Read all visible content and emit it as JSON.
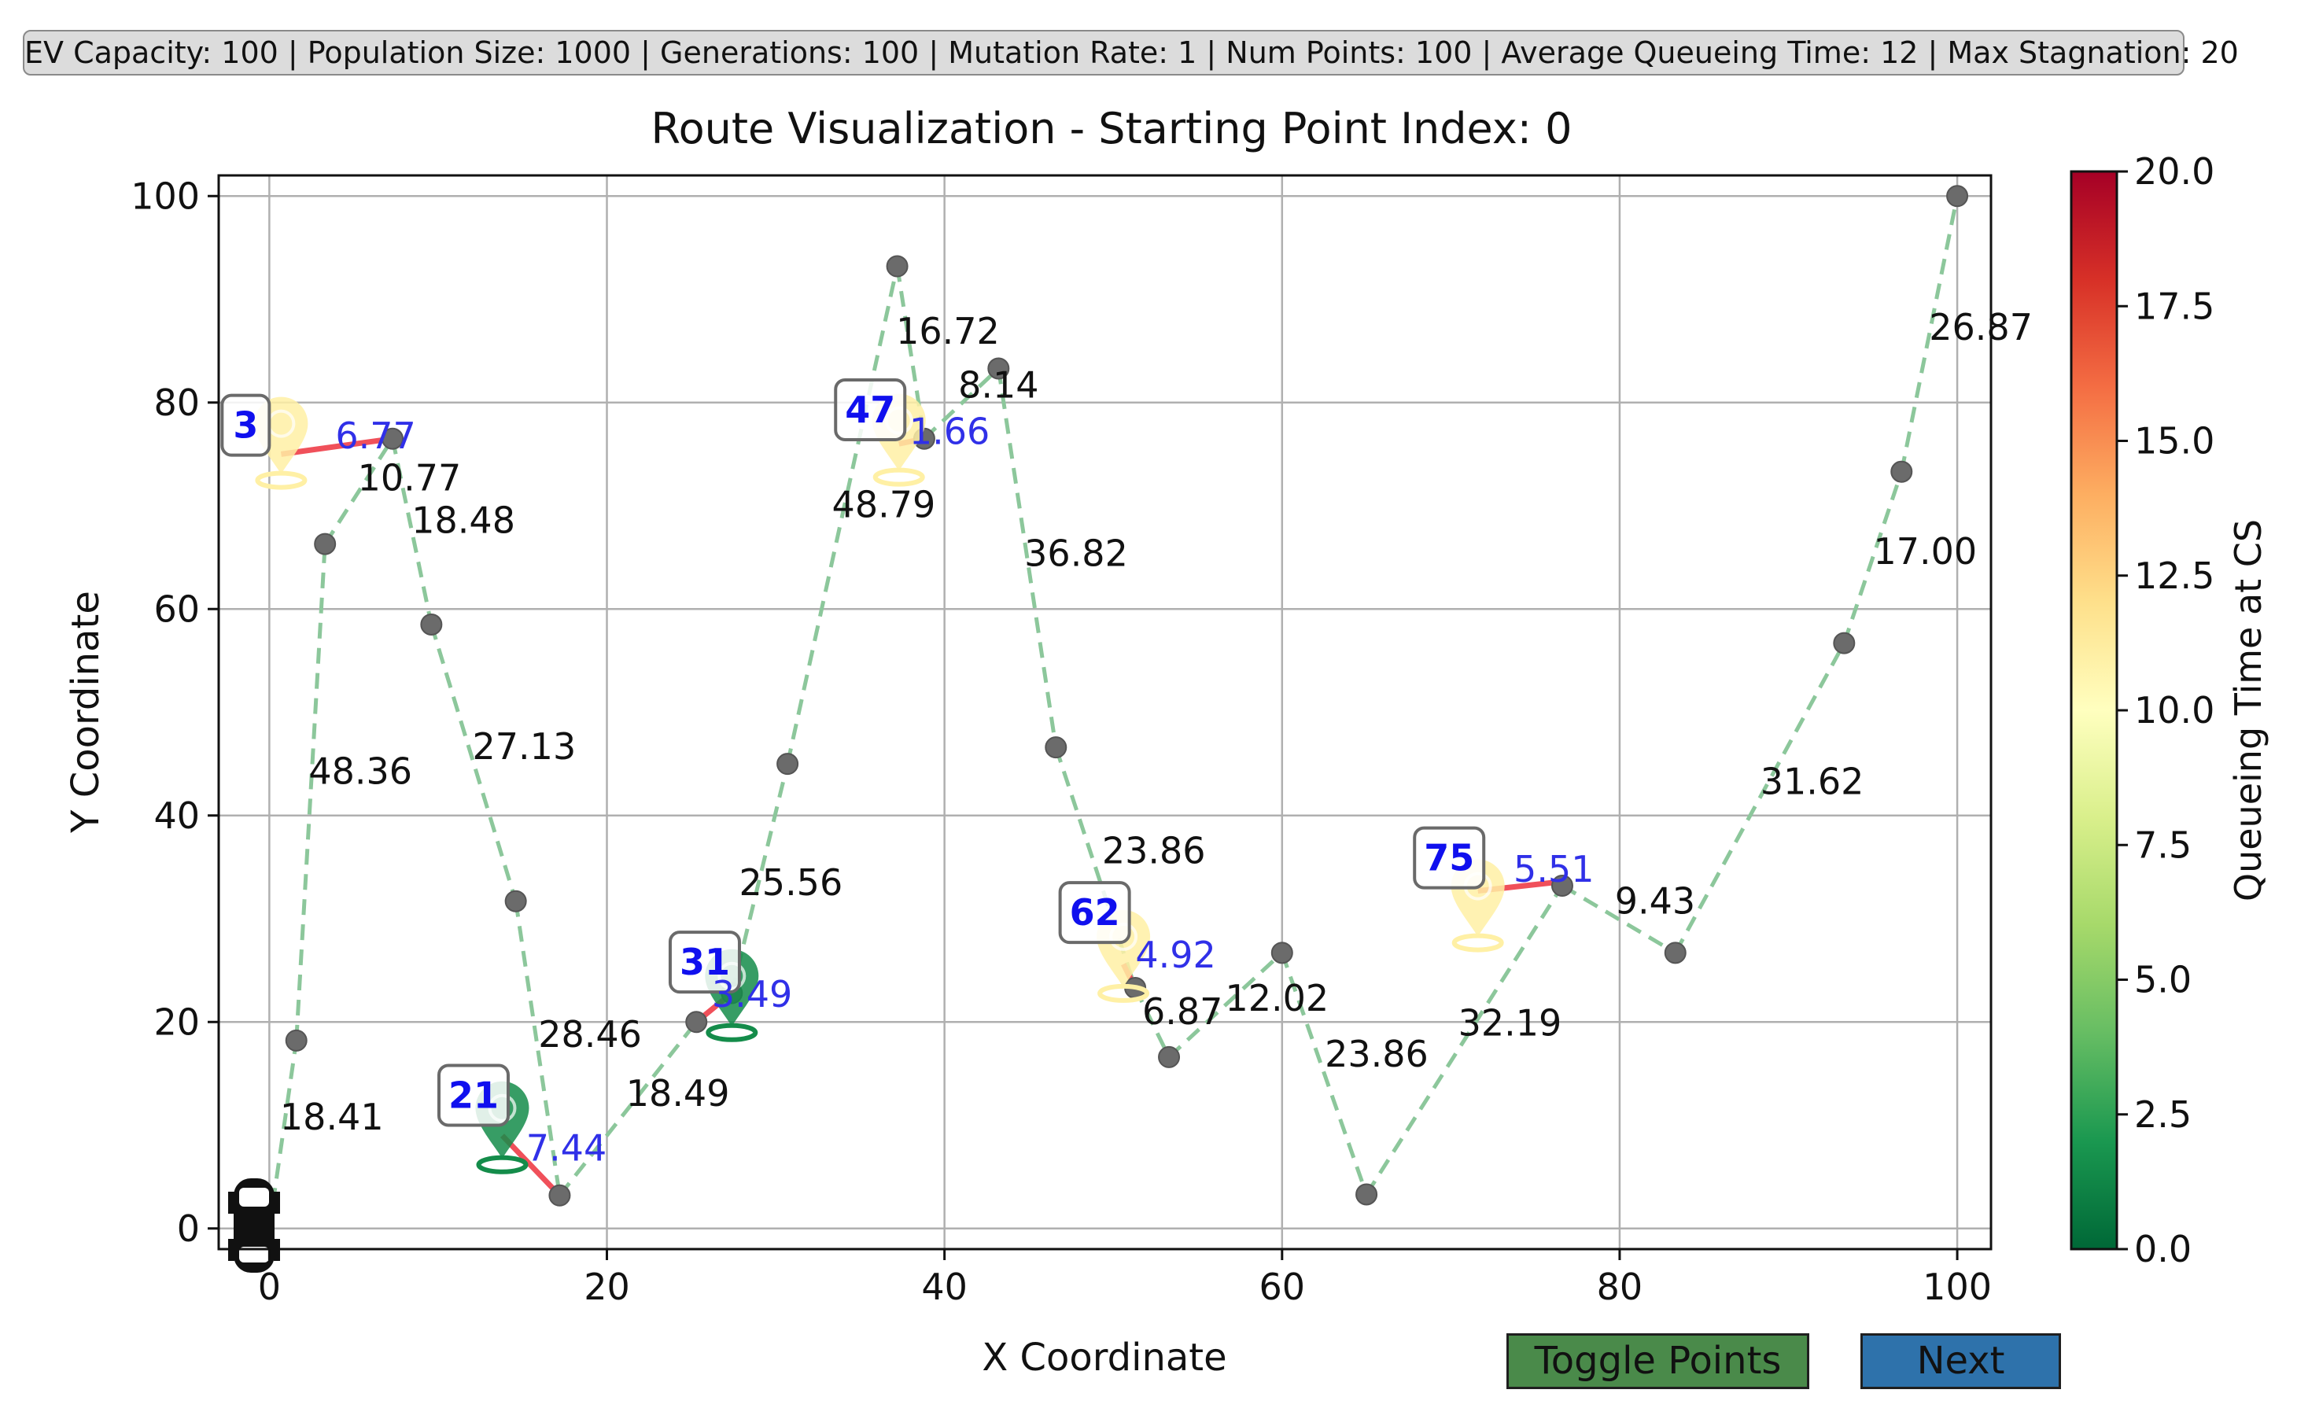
{
  "params": "EV Capacity: 100 | Population Size: 1000 | Generations: 100 | Mutation Rate: 1 | Num Points: 100 | Average Queueing Time: 12 | Max Stagnation: 20",
  "buttons": {
    "toggle_label": "Toggle Points",
    "toggle_color": "#4a8a4a",
    "next_label": "Next",
    "next_color": "#2e72ab"
  },
  "chart_data": {
    "type": "scatter",
    "title": "Route Visualization - Starting Point Index: 0",
    "xlabel": "X Coordinate",
    "ylabel": "Y Coordinate",
    "xlim": [
      -3,
      102
    ],
    "ylim": [
      -2,
      102
    ],
    "xticks": [
      0,
      20,
      40,
      60,
      80,
      100
    ],
    "yticks": [
      0,
      20,
      40,
      60,
      80,
      100
    ],
    "grid": true,
    "route_color": "#8cc79b",
    "charge_line_color": "#f0505a",
    "point_color": "#6b6b6b",
    "points": [
      [
        0,
        0
      ],
      [
        1.6,
        18.2
      ],
      [
        3.3,
        66.3
      ],
      [
        7.3,
        76.5
      ],
      [
        9.6,
        58.5
      ],
      [
        14.6,
        31.7
      ],
      [
        17.2,
        3.2
      ],
      [
        25.3,
        20.0
      ],
      [
        27.4,
        22.8
      ],
      [
        30.7,
        45.0
      ],
      [
        37.2,
        93.2
      ],
      [
        38.8,
        76.5
      ],
      [
        43.2,
        83.3
      ],
      [
        46.6,
        46.6
      ],
      [
        51.3,
        23.3
      ],
      [
        53.3,
        16.6
      ],
      [
        60.0,
        26.7
      ],
      [
        65.0,
        3.3
      ],
      [
        76.6,
        33.2
      ],
      [
        83.3,
        26.7
      ],
      [
        93.3,
        56.7
      ],
      [
        96.7,
        73.3
      ],
      [
        100,
        100
      ]
    ],
    "segment_labels": [
      {
        "text": "18.41",
        "x": 3.7,
        "y": 10.8
      },
      {
        "text": "48.36",
        "x": 5.4,
        "y": 44.3
      },
      {
        "text": "10.77",
        "x": 8.3,
        "y": 72.7
      },
      {
        "text": "18.48",
        "x": 11.5,
        "y": 68.6
      },
      {
        "text": "27.13",
        "x": 15.1,
        "y": 46.7
      },
      {
        "text": "28.46",
        "x": 19.0,
        "y": 18.8
      },
      {
        "text": "18.49",
        "x": 24.2,
        "y": 13.1
      },
      {
        "text": "25.56",
        "x": 30.9,
        "y": 33.5
      },
      {
        "text": "48.79",
        "x": 36.4,
        "y": 70.1
      },
      {
        "text": "16.72",
        "x": 40.2,
        "y": 86.9
      },
      {
        "text": "8.14",
        "x": 43.2,
        "y": 81.7
      },
      {
        "text": "36.82",
        "x": 47.8,
        "y": 65.4
      },
      {
        "text": "23.86",
        "x": 52.4,
        "y": 36.6
      },
      {
        "text": "6.87",
        "x": 54.1,
        "y": 21.0
      },
      {
        "text": "12.02",
        "x": 59.7,
        "y": 22.3
      },
      {
        "text": "23.86",
        "x": 65.6,
        "y": 16.9
      },
      {
        "text": "32.19",
        "x": 73.5,
        "y": 19.9
      },
      {
        "text": "9.43",
        "x": 82.1,
        "y": 31.7
      },
      {
        "text": "31.62",
        "x": 91.4,
        "y": 43.3
      },
      {
        "text": "17.00",
        "x": 98.1,
        "y": 65.6
      },
      {
        "text": "26.87",
        "x": 101.4,
        "y": 87.3
      }
    ],
    "charging_stations": [
      {
        "id": "3",
        "x": 0.7,
        "y": 77.5,
        "queue": 11,
        "dist": "6.77",
        "from_x": 0.7,
        "from_y": 75,
        "to_x": 7.3,
        "to_y": 76.5,
        "id_x": -1.4,
        "id_y": 77.8,
        "dist_x": 6.3,
        "dist_y": 76.8
      },
      {
        "id": "21",
        "x": 13.8,
        "y": 11.2,
        "queue": 1.5,
        "dist": "7.44",
        "from_x": 13.8,
        "from_y": 9,
        "to_x": 17.2,
        "to_y": 3.2,
        "id_x": 12.1,
        "id_y": 12.9,
        "dist_x": 17.6,
        "dist_y": 7.8
      },
      {
        "id": "31",
        "x": 27.4,
        "y": 24.0,
        "queue": 1.5,
        "dist": "3.49",
        "from_x": 25.3,
        "from_y": 20,
        "to_x": 27.4,
        "to_y": 22.8,
        "id_x": 25.8,
        "id_y": 25.8,
        "dist_x": 28.6,
        "dist_y": 22.7
      },
      {
        "id": "47",
        "x": 37.3,
        "y": 77.8,
        "queue": 11,
        "dist": "1.66",
        "from_x": 37.3,
        "from_y": 76.0,
        "to_x": 38.8,
        "to_y": 76.5,
        "id_x": 35.6,
        "id_y": 79.3,
        "dist_x": 40.3,
        "dist_y": 77.2
      },
      {
        "id": "62",
        "x": 50.6,
        "y": 27.8,
        "queue": 11,
        "dist": "4.92",
        "from_x": 50.6,
        "from_y": 25.6,
        "to_x": 51.3,
        "to_y": 23.3,
        "id_x": 48.9,
        "id_y": 30.6,
        "dist_x": 53.7,
        "dist_y": 26.5
      },
      {
        "id": "75",
        "x": 71.6,
        "y": 32.7,
        "queue": 11,
        "dist": "5.51",
        "from_x": 71.6,
        "from_y": 32.7,
        "to_x": 76.6,
        "to_y": 33.6,
        "id_x": 69.9,
        "id_y": 35.9,
        "dist_x": 76.1,
        "dist_y": 34.8
      }
    ],
    "colorbar": {
      "label": "Queueing Time at CS",
      "min": 0,
      "max": 20,
      "ticks": [
        "0.0",
        "2.5",
        "5.0",
        "7.5",
        "10.0",
        "12.5",
        "15.0",
        "17.5",
        "20.0"
      ],
      "colormap": [
        "#006837",
        "#1a9850",
        "#66bd63",
        "#a6d96a",
        "#d9ef8b",
        "#ffffbf",
        "#fee08b",
        "#fdae61",
        "#f46d43",
        "#d73027",
        "#a50026"
      ]
    }
  }
}
